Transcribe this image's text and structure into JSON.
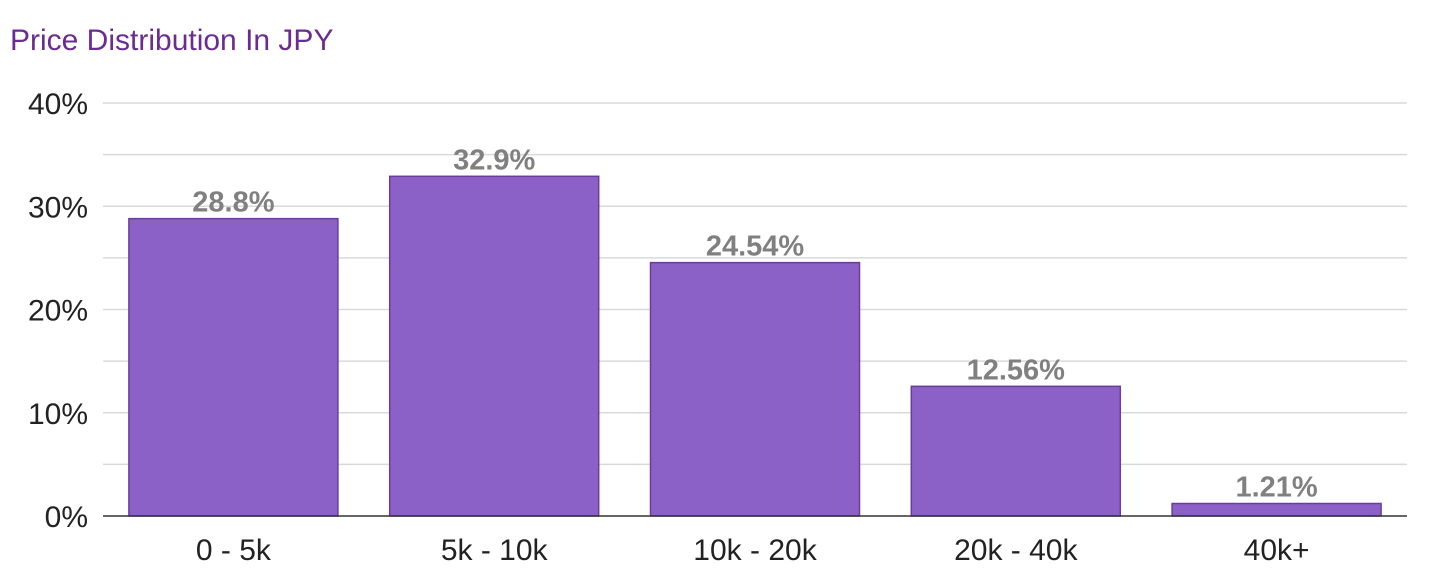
{
  "chart_data": {
    "type": "bar",
    "title": "Price Distribution In JPY",
    "categories": [
      "0 - 5k",
      "5k - 10k",
      "10k - 20k",
      "20k - 40k",
      "40k+"
    ],
    "values": [
      28.8,
      32.9,
      24.54,
      12.56,
      1.21
    ],
    "data_labels": [
      "28.8%",
      "32.9%",
      "24.54%",
      "12.56%",
      "1.21%"
    ],
    "xlabel": "",
    "ylabel": "",
    "ylim": [
      0,
      40
    ],
    "yticks": [
      0,
      10,
      20,
      30,
      40
    ],
    "ytick_labels": [
      "0%",
      "10%",
      "20%",
      "30%",
      "40%"
    ],
    "grid": true,
    "colors": {
      "bar": "#8b61c8",
      "bar_border": "#6a3d9a",
      "data_label": "#808080",
      "title": "#6a2c91",
      "grid": "#d9d9d9"
    }
  }
}
